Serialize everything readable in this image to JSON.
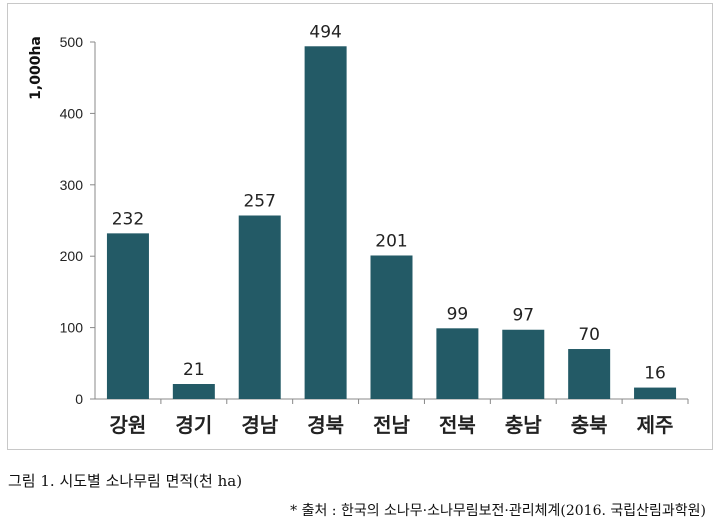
{
  "chart_data": {
    "type": "bar",
    "ylabel": "1,000ha",
    "ylim": [
      0,
      500
    ],
    "yticks": [
      0,
      100,
      200,
      300,
      400,
      500
    ],
    "categories": [
      "강원",
      "경기",
      "경남",
      "경북",
      "전남",
      "전북",
      "충남",
      "충북",
      "제주"
    ],
    "values": [
      232,
      21,
      257,
      494,
      201,
      99,
      97,
      70,
      16
    ],
    "bar_color": "#235a66",
    "grid": false
  },
  "caption": "그림 1. 시도별 소나무림 면적(천 ha)",
  "source": "* 출처 : 한국의 소나무·소나무림보전·관리체계(2016. 국립산림과학원)"
}
